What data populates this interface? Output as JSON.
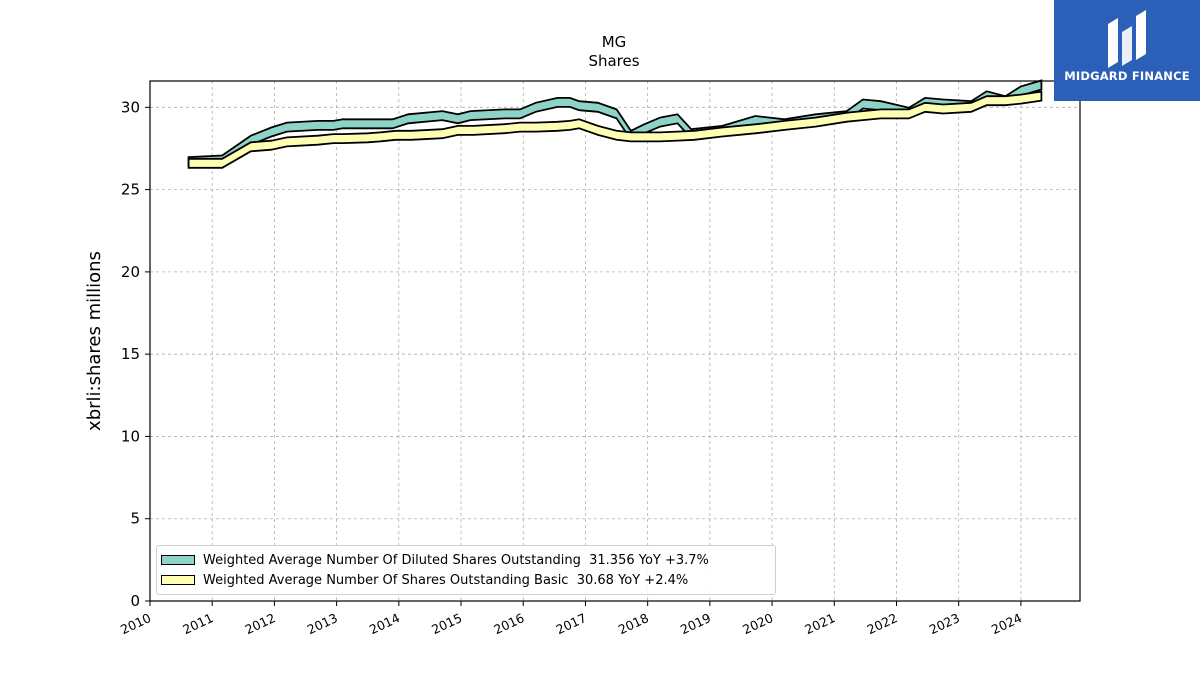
{
  "chart_data": {
    "type": "line",
    "title": "MG",
    "subtitle": "Shares",
    "xlabel": "",
    "ylabel": "xbrli:shares millions",
    "xlim": [
      2010.0,
      2024.95
    ],
    "ylim": [
      0,
      31.6
    ],
    "x_ticks": [
      "2010",
      "2011",
      "2012",
      "2013",
      "2014",
      "2015",
      "2016",
      "2017",
      "2018",
      "2019",
      "2020",
      "2021",
      "2022",
      "2023",
      "2024"
    ],
    "y_ticks": [
      "0",
      "5",
      "10",
      "15",
      "20",
      "25",
      "30"
    ],
    "grid": true,
    "legend_position": "lower-left",
    "series": [
      {
        "name": "Weighted Average Number Of Diluted Shares Outstanding  31.356 YoY +3.7%",
        "color": "#8dd3c7",
        "x": [
          2010.62,
          2011.16,
          2011.62,
          2011.95,
          2012.2,
          2012.7,
          2012.95,
          2013.1,
          2013.5,
          2013.9,
          2014.15,
          2014.7,
          2014.95,
          2015.15,
          2015.7,
          2015.95,
          2016.2,
          2016.55,
          2016.75,
          2016.9,
          2017.2,
          2017.5,
          2017.73,
          2017.95,
          2018.2,
          2018.48,
          2018.7,
          2018.95,
          2019.2,
          2019.73,
          2020.2,
          2020.7,
          2021.2,
          2021.46,
          2021.75,
          2022.2,
          2022.46,
          2022.75,
          2023.2,
          2023.45,
          2023.75,
          2024.0,
          2024.33
        ],
        "y": [
          26.7,
          26.8,
          28.0,
          28.5,
          28.8,
          28.9,
          28.9,
          29.0,
          29.0,
          29.0,
          29.3,
          29.5,
          29.3,
          29.5,
          29.6,
          29.6,
          30.0,
          30.3,
          30.3,
          30.1,
          30.0,
          29.6,
          28.3,
          28.7,
          29.1,
          29.3,
          28.4,
          28.5,
          28.6,
          29.2,
          29.0,
          29.3,
          29.5,
          30.2,
          30.1,
          29.7,
          30.3,
          30.2,
          30.1,
          30.7,
          30.4,
          31.0,
          31.356
        ]
      },
      {
        "name": "Weighted Average Number Of Shares Outstanding Basic  30.68 YoY +2.4%",
        "color": "#ffffb3",
        "x": [
          2010.62,
          2011.16,
          2011.62,
          2011.95,
          2012.2,
          2012.7,
          2012.95,
          2013.1,
          2013.5,
          2013.7,
          2013.95,
          2014.2,
          2014.7,
          2014.95,
          2015.2,
          2015.7,
          2015.95,
          2016.2,
          2016.55,
          2016.75,
          2016.9,
          2017.2,
          2017.5,
          2017.73,
          2017.95,
          2018.2,
          2018.48,
          2018.75,
          2019.2,
          2019.75,
          2020.2,
          2020.7,
          2021.2,
          2021.46,
          2021.75,
          2022.2,
          2022.46,
          2022.75,
          2023.2,
          2023.45,
          2023.75,
          2024.0,
          2024.33
        ],
        "y": [
          26.6,
          26.6,
          27.6,
          27.7,
          27.9,
          28.0,
          28.1,
          28.1,
          28.15,
          28.2,
          28.3,
          28.3,
          28.4,
          28.6,
          28.6,
          28.7,
          28.8,
          28.8,
          28.85,
          28.9,
          29.0,
          28.6,
          28.3,
          28.2,
          28.2,
          28.2,
          28.25,
          28.3,
          28.5,
          28.7,
          28.9,
          29.1,
          29.4,
          29.5,
          29.6,
          29.6,
          30.0,
          29.9,
          30.0,
          30.4,
          30.4,
          30.5,
          30.68
        ]
      }
    ]
  },
  "logo": {
    "text": "MIDGARD FINANCE"
  },
  "colors": {
    "grid": "#b0b0b0",
    "axis": "#000000",
    "logo_bg": "#2b5fb8"
  }
}
